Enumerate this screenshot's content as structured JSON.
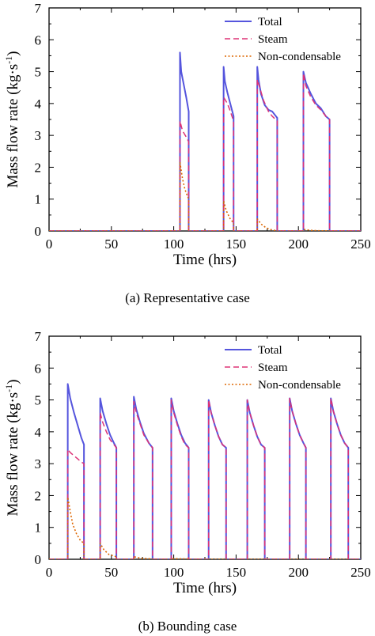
{
  "chart_data": [
    {
      "type": "line",
      "caption": "(a) Representative case",
      "xlabel": "Time (hrs)",
      "ylabel_main": "Mass flow rate (kg·s",
      "ylabel_sup": "-1",
      "ylabel_close": ")",
      "xlim": [
        0,
        250
      ],
      "ylim": [
        0,
        7
      ],
      "xticks": [
        "0",
        "50",
        "100",
        "150",
        "200",
        "250"
      ],
      "yticks": [
        "0",
        "1",
        "2",
        "3",
        "4",
        "5",
        "6",
        "7"
      ],
      "grid": false,
      "legend_position": "top-right",
      "series": [
        {
          "name": "Total",
          "color": "#5555dd",
          "style": "solid",
          "x": [
            0,
            105,
            105,
            106,
            108,
            110,
            112,
            112,
            140,
            140,
            141,
            143,
            145,
            148,
            148,
            167,
            167,
            168,
            170,
            173,
            176,
            179,
            183,
            183,
            204,
            204,
            206,
            210,
            214,
            218,
            222,
            225,
            225,
            250
          ],
          "y": [
            0,
            0,
            5.6,
            5.0,
            4.6,
            4.2,
            3.75,
            0,
            0,
            5.15,
            4.7,
            4.35,
            4.05,
            3.6,
            0,
            0,
            5.15,
            4.75,
            4.3,
            3.95,
            3.8,
            3.75,
            3.55,
            0,
            0,
            5.0,
            4.65,
            4.3,
            4.0,
            3.85,
            3.6,
            3.5,
            0,
            0
          ]
        },
        {
          "name": "Steam",
          "color": "#dd3377",
          "style": "dashed",
          "x": [
            0,
            105,
            105,
            107,
            110,
            112,
            112,
            140,
            140,
            143,
            145,
            148,
            148,
            167,
            167,
            169,
            172,
            176,
            179,
            183,
            183,
            204,
            204,
            206,
            210,
            214,
            218,
            222,
            225,
            225,
            250
          ],
          "y": [
            0,
            0,
            3.45,
            3.15,
            2.95,
            2.8,
            0,
            0,
            4.2,
            4.0,
            3.8,
            3.45,
            0,
            0,
            4.75,
            4.5,
            4.1,
            3.75,
            3.6,
            3.45,
            0,
            0,
            4.95,
            4.55,
            4.2,
            3.95,
            3.8,
            3.6,
            3.5,
            0,
            0
          ]
        },
        {
          "name": "Non-condensable",
          "color": "#dd6600",
          "style": "dotted",
          "x": [
            0,
            105,
            105,
            107,
            109,
            112,
            112,
            140,
            140,
            142,
            145,
            148,
            148,
            167,
            167,
            170,
            174,
            179,
            183,
            183,
            204,
            204,
            210,
            215,
            225,
            225,
            250
          ],
          "y": [
            0,
            0,
            2.15,
            1.65,
            1.3,
            1.0,
            0,
            0,
            0.95,
            0.65,
            0.4,
            0.25,
            0,
            0,
            0.38,
            0.22,
            0.1,
            0.03,
            0.01,
            0,
            0,
            0.05,
            0.02,
            0.01,
            0,
            0,
            0
          ]
        }
      ]
    },
    {
      "type": "line",
      "caption": "(b) Bounding case",
      "xlabel": "Time (hrs)",
      "ylabel_main": "Mass flow rate (kg·s",
      "ylabel_sup": "-1",
      "ylabel_close": ")",
      "xlim": [
        0,
        250
      ],
      "ylim": [
        0,
        7
      ],
      "xticks": [
        "0",
        "50",
        "100",
        "150",
        "200",
        "250"
      ],
      "yticks": [
        "0",
        "1",
        "2",
        "3",
        "4",
        "5",
        "6",
        "7"
      ],
      "grid": false,
      "legend_position": "top-right",
      "series": [
        {
          "name": "Total",
          "color": "#5555dd",
          "style": "solid",
          "x": [
            0,
            15,
            15,
            17,
            20,
            23,
            26,
            28,
            28,
            41,
            41,
            43,
            46,
            49,
            52,
            54,
            54,
            68,
            68,
            70,
            73,
            76,
            80,
            83,
            83,
            98,
            98,
            100,
            103,
            106,
            109,
            112,
            112,
            128,
            128,
            130,
            133,
            136,
            139,
            142,
            142,
            159,
            159,
            161,
            164,
            167,
            170,
            173,
            173,
            193,
            193,
            195,
            198,
            201,
            204,
            206,
            206,
            226,
            226,
            228,
            231,
            234,
            237,
            240,
            240,
            250
          ],
          "y": [
            0,
            0,
            5.5,
            5.05,
            4.6,
            4.2,
            3.8,
            3.6,
            0,
            0,
            5.05,
            4.65,
            4.25,
            3.9,
            3.65,
            3.5,
            0,
            0,
            5.1,
            4.7,
            4.3,
            3.95,
            3.65,
            3.5,
            0,
            0,
            5.05,
            4.65,
            4.25,
            3.9,
            3.65,
            3.5,
            0,
            0,
            5.0,
            4.6,
            4.2,
            3.85,
            3.6,
            3.5,
            0,
            0,
            5.0,
            4.6,
            4.2,
            3.85,
            3.6,
            3.5,
            0,
            0,
            5.05,
            4.65,
            4.25,
            3.9,
            3.65,
            3.5,
            0,
            0,
            5.05,
            4.65,
            4.25,
            3.9,
            3.65,
            3.5,
            0,
            0
          ]
        },
        {
          "name": "Steam",
          "color": "#dd3377",
          "style": "dashed",
          "x": [
            0,
            15,
            15,
            17,
            20,
            23,
            26,
            28,
            28,
            41,
            41,
            43,
            46,
            49,
            52,
            54,
            54,
            68,
            68,
            70,
            73,
            76,
            80,
            83,
            83,
            98,
            98,
            100,
            103,
            106,
            109,
            112,
            112,
            128,
            128,
            130,
            133,
            136,
            139,
            142,
            142,
            159,
            159,
            161,
            164,
            167,
            170,
            173,
            173,
            193,
            193,
            195,
            198,
            201,
            204,
            206,
            206,
            226,
            226,
            228,
            231,
            234,
            237,
            240,
            240,
            250
          ],
          "y": [
            0,
            0,
            3.45,
            3.35,
            3.25,
            3.15,
            3.05,
            3.0,
            0,
            0,
            4.6,
            4.3,
            4.0,
            3.75,
            3.6,
            3.5,
            0,
            0,
            4.95,
            4.6,
            4.25,
            3.9,
            3.65,
            3.5,
            0,
            0,
            5.0,
            4.6,
            4.2,
            3.85,
            3.6,
            3.5,
            0,
            0,
            5.0,
            4.6,
            4.2,
            3.85,
            3.6,
            3.5,
            0,
            0,
            5.0,
            4.6,
            4.2,
            3.85,
            3.6,
            3.5,
            0,
            0,
            5.05,
            4.65,
            4.25,
            3.9,
            3.65,
            3.5,
            0,
            0,
            5.05,
            4.65,
            4.25,
            3.9,
            3.65,
            3.5,
            0,
            0
          ]
        },
        {
          "name": "Non-condensable",
          "color": "#dd6600",
          "style": "dotted",
          "x": [
            0,
            15,
            15,
            17,
            19,
            22,
            25,
            28,
            28,
            41,
            41,
            44,
            48,
            54,
            54,
            68,
            68,
            74,
            83,
            83,
            98,
            98,
            112,
            112,
            250
          ],
          "y": [
            0,
            0,
            1.95,
            1.5,
            1.1,
            0.8,
            0.6,
            0.5,
            0,
            0,
            0.5,
            0.3,
            0.15,
            0.08,
            0,
            0,
            0.08,
            0.03,
            0.01,
            0,
            0,
            0.02,
            0.01,
            0,
            0
          ]
        }
      ]
    }
  ]
}
